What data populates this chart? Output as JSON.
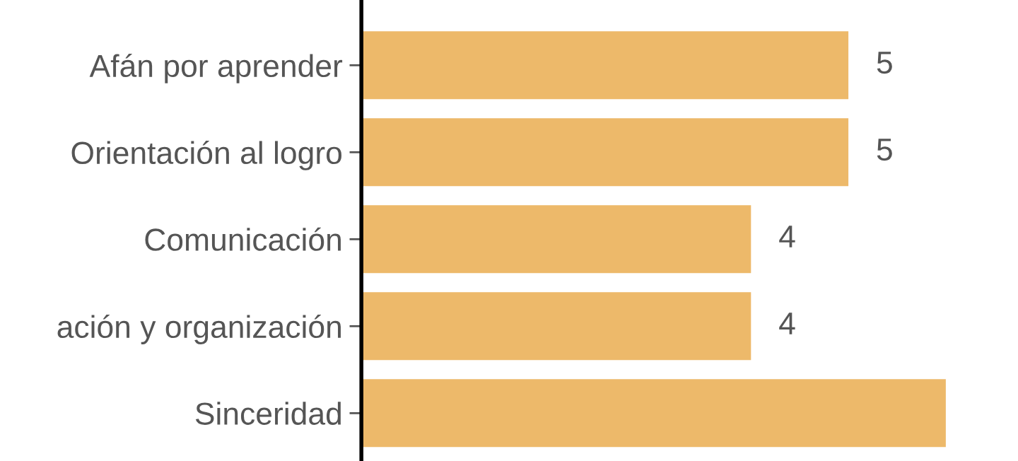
{
  "chart_data": {
    "type": "bar",
    "orientation": "horizontal",
    "categories": [
      "Afán por aprender",
      "Orientación al logro",
      "Comunicación",
      "ación y organización",
      "Sinceridad"
    ],
    "values": [
      5,
      5,
      4,
      4,
      6
    ],
    "value_labels": [
      "5",
      "5",
      "4",
      "4",
      null
    ],
    "color": "#edb96a",
    "grid": false,
    "legend": false
  }
}
